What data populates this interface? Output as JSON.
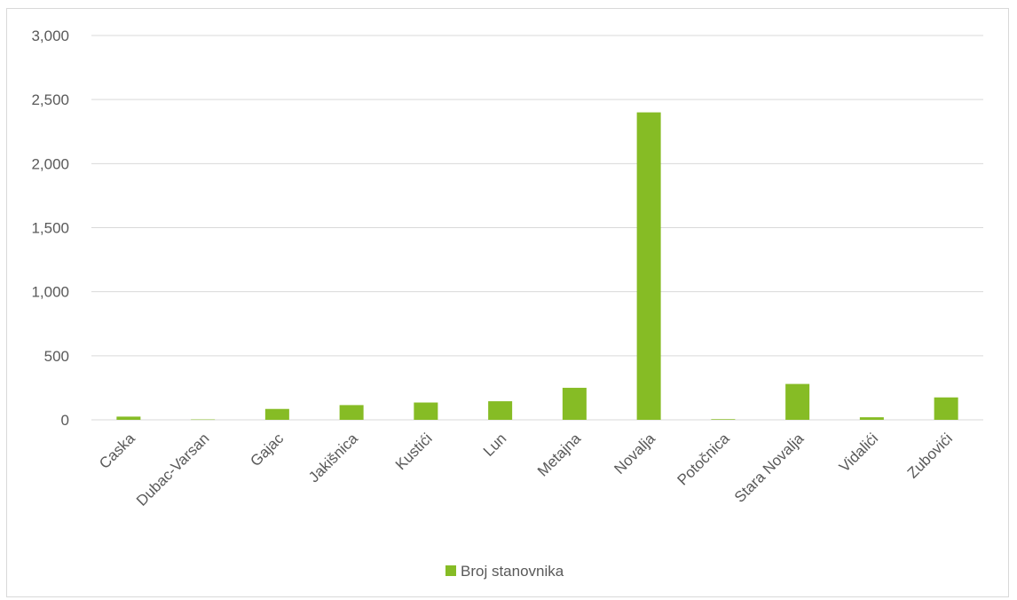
{
  "chart_data": {
    "type": "bar",
    "categories": [
      "Caska",
      "Dubac-Varsan",
      "Gajac",
      "Jakišnica",
      "Kustići",
      "Lun",
      "Metajna",
      "Novalja",
      "Potočnica",
      "Stara Novalja",
      "Vidalići",
      "Zubovići"
    ],
    "series": [
      {
        "name": "Broj stanovnika",
        "values": [
          25,
          3,
          85,
          115,
          135,
          145,
          250,
          2400,
          5,
          280,
          20,
          175
        ]
      }
    ],
    "y_ticks": [
      "0",
      "500",
      "1,000",
      "1,500",
      "2,000",
      "2,500",
      "3,000"
    ],
    "ylim": [
      0,
      3000
    ],
    "grid": true,
    "legend_position": "bottom",
    "colors": {
      "bar": "#86bc25",
      "grid": "#d9d9d9",
      "text": "#595959"
    }
  }
}
